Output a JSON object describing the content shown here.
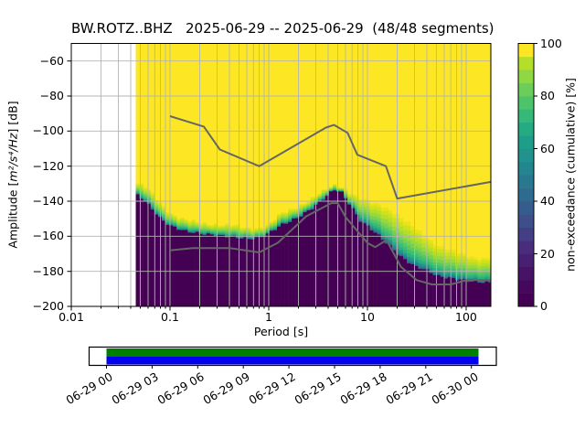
{
  "chart_data": {
    "type": "heatmap",
    "title": "BW.ROTZ..BHZ   2025-06-29 -- 2025-06-29  (48/48 segments)",
    "station": "BW.ROTZ..BHZ",
    "date_range": "2025-06-29 -- 2025-06-29",
    "segments": "48/48 segments",
    "xlabel": "Period [s]",
    "ylabel": "Amplitude [m²/s⁴/Hz] [dB]",
    "ylabel_parts": {
      "pre": "Amplitude [",
      "math": "m²/s⁴/Hz",
      "post": "] [dB]"
    },
    "colorbar_label": "non-exceedance (cumulative) [%]",
    "x_axis": {
      "scale": "log",
      "range": [
        0.01,
        178
      ],
      "tick_values": [
        0.01,
        0.1,
        1,
        10,
        100
      ],
      "tick_labels": [
        "0.01",
        "0.1",
        "1",
        "10",
        "100"
      ]
    },
    "y_axis": {
      "range": [
        -200,
        -50
      ],
      "tick_values": [
        -60,
        -80,
        -100,
        -120,
        -140,
        -160,
        -180,
        -200
      ],
      "tick_labels": [
        "−60",
        "−80",
        "−100",
        "−120",
        "−140",
        "−160",
        "−180",
        "−200"
      ]
    },
    "grid": {
      "on": true,
      "color": "#b4b4b4"
    },
    "colorbar": {
      "range": [
        0,
        100
      ],
      "tick_values": [
        0,
        20,
        40,
        60,
        80,
        100
      ],
      "tick_labels": [
        "0",
        "20",
        "40",
        "60",
        "80",
        "100"
      ],
      "steps": 20,
      "colormap": "viridis",
      "colors": [
        "#440154",
        "#46085c",
        "#471365",
        "#482071",
        "#472d7b",
        "#433e85",
        "#3d4e8a",
        "#365c8d",
        "#2f6b8e",
        "#2a788e",
        "#25858e",
        "#21928c",
        "#1e9e89",
        "#25ab82",
        "#36b878",
        "#4ec36b",
        "#6bcd5a",
        "#8fd744",
        "#b5de2b",
        "#fde725"
      ]
    },
    "field": {
      "comment": "per period: [period_s, dB where yellow(100%) band ends, dB where solid dark purple(0%) begins]",
      "period_range": [
        0.045,
        178
      ],
      "column_step_octaves": 0.125,
      "above_color": "#fde725",
      "below_color": "#440154",
      "band_profile": [
        [
          0.0,
          "#e8e419"
        ],
        [
          0.1,
          "#d0e11c"
        ],
        [
          0.22,
          "#b5de2b"
        ],
        [
          0.34,
          "#97d83f"
        ],
        [
          0.46,
          "#76d153"
        ],
        [
          0.57,
          "#57c666"
        ],
        [
          0.67,
          "#3dbc74"
        ],
        [
          0.76,
          "#2aaf80"
        ],
        [
          0.84,
          "#21998a"
        ],
        [
          0.9,
          "#24868e"
        ],
        [
          0.95,
          "#2e6d8e"
        ],
        [
          0.98,
          "#3b538b"
        ],
        [
          1.0,
          "#472d7b"
        ]
      ],
      "breakpoints": [
        [
          0.045,
          -129.5,
          -136
        ],
        [
          0.055,
          -131.5,
          -139.5
        ],
        [
          0.065,
          -135.5,
          -144
        ],
        [
          0.08,
          -141.5,
          -150
        ],
        [
          0.1,
          -146.5,
          -154
        ],
        [
          0.14,
          -150.5,
          -157
        ],
        [
          0.2,
          -152.5,
          -158.5
        ],
        [
          0.3,
          -153,
          -159.5
        ],
        [
          0.45,
          -154,
          -160.5
        ],
        [
          0.62,
          -155.5,
          -161.5
        ],
        [
          0.8,
          -155,
          -161
        ],
        [
          1.0,
          -153.5,
          -158.5
        ],
        [
          1.3,
          -147.5,
          -154
        ],
        [
          1.9,
          -143.5,
          -150
        ],
        [
          2.7,
          -138.5,
          -144.5
        ],
        [
          3.8,
          -133.5,
          -137.5
        ],
        [
          4.6,
          -131,
          -133.5
        ],
        [
          5.4,
          -131.5,
          -134.5
        ],
        [
          6.5,
          -134.5,
          -141
        ],
        [
          8.6,
          -138.5,
          -151.5
        ],
        [
          10.7,
          -141,
          -155.5
        ],
        [
          13.3,
          -142,
          -160
        ],
        [
          16.4,
          -144,
          -165
        ],
        [
          20.4,
          -148,
          -170.5
        ],
        [
          25,
          -152,
          -174
        ],
        [
          31,
          -156,
          -177.5
        ],
        [
          38.6,
          -160,
          -179
        ],
        [
          45,
          -163,
          -181
        ],
        [
          52,
          -165,
          -182.8
        ],
        [
          80,
          -169.5,
          -184.5
        ],
        [
          122,
          -172,
          -186
        ],
        [
          178,
          -172.5,
          -186.5
        ]
      ]
    },
    "noise_models": {
      "color": "#666666",
      "nhnm": [
        [
          0.1,
          -91.5
        ],
        [
          0.22,
          -97.4
        ],
        [
          0.32,
          -110.5
        ],
        [
          0.8,
          -120
        ],
        [
          3.8,
          -98
        ],
        [
          4.6,
          -96.5
        ],
        [
          6.3,
          -101
        ],
        [
          7.9,
          -113.5
        ],
        [
          15.4,
          -120
        ],
        [
          20,
          -138.5
        ],
        [
          178,
          -129.0
        ]
      ],
      "nlnm": [
        [
          0.1,
          -168
        ],
        [
          0.17,
          -166.7
        ],
        [
          0.4,
          -166.7
        ],
        [
          0.8,
          -169.2
        ],
        [
          1.24,
          -163.7
        ],
        [
          2.4,
          -148.6
        ],
        [
          4.3,
          -141.1
        ],
        [
          5,
          -141.1
        ],
        [
          6,
          -149
        ],
        [
          10,
          -163.8
        ],
        [
          12,
          -166.2
        ],
        [
          15.6,
          -162.1
        ],
        [
          21.9,
          -177.5
        ],
        [
          31.6,
          -185
        ],
        [
          45,
          -187.5
        ],
        [
          70,
          -187.5
        ],
        [
          101,
          -185
        ],
        [
          154,
          -185
        ],
        [
          178,
          -185.4
        ]
      ]
    },
    "timeline": {
      "tick_labels": [
        "06-29 00",
        "06-29 03",
        "06-29 06",
        "06-29 09",
        "06-29 12",
        "06-29 15",
        "06-29 18",
        "06-29 21",
        "06-30 00"
      ],
      "data_color_top": "#008000",
      "data_color_bottom": "#0000ee",
      "box_color": "#ffffff",
      "border_color": "#000000"
    }
  }
}
